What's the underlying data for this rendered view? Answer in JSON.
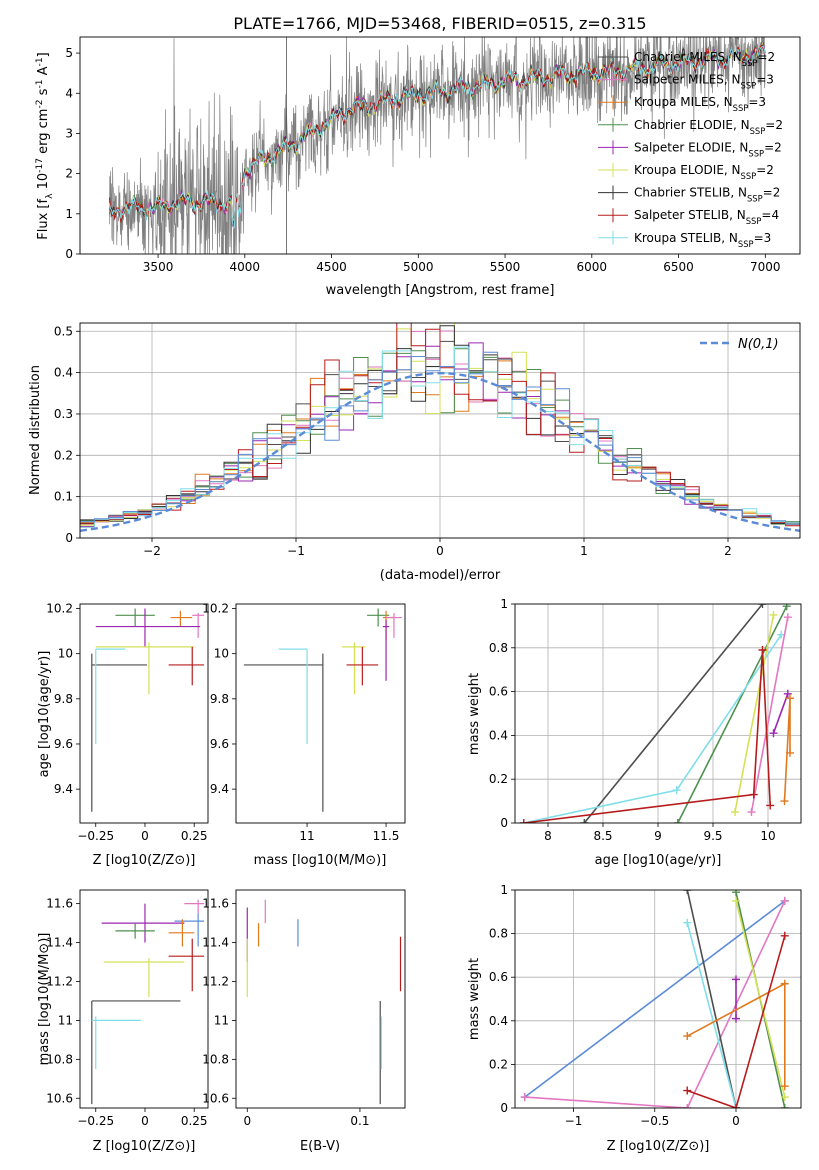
{
  "figure": {
    "title": "PLATE=1766, MJD=53468, FIBERID=0515, z=0.315"
  },
  "legend_colors": [
    "#4d4d4d",
    "#e377c2",
    "#e07a1f",
    "#4f8f4f",
    "#9b27b0",
    "#d4e157",
    "#333333",
    "#b71c1c",
    "#80deea"
  ],
  "chart_data": [
    {
      "id": "spectrum",
      "type": "line",
      "xlabel": "wavelength [Angstrom, rest frame]",
      "ylabel": "Flux [f_λ 10^-17 erg cm^-2 s^-1 A^-1]",
      "xlim": [
        3050,
        7200
      ],
      "ylim": [
        0,
        5.4
      ],
      "xticks": [
        3500,
        4000,
        4500,
        5000,
        5500,
        6000,
        6500,
        7000
      ],
      "yticks": [
        0,
        1,
        2,
        3,
        4,
        5
      ],
      "grid": false,
      "legend": "top-right",
      "continuum_knots": [
        [
          3220,
          1.0
        ],
        [
          3300,
          1.15
        ],
        [
          3500,
          1.15
        ],
        [
          3600,
          1.3
        ],
        [
          3800,
          1.3
        ],
        [
          3950,
          1.2
        ],
        [
          4000,
          2.1
        ],
        [
          4300,
          2.8
        ],
        [
          4600,
          3.6
        ],
        [
          4900,
          3.9
        ],
        [
          5200,
          4.1
        ],
        [
          5500,
          4.3
        ],
        [
          5800,
          4.45
        ],
        [
          6100,
          4.55
        ],
        [
          6400,
          4.7
        ],
        [
          6700,
          4.85
        ],
        [
          7000,
          5.0
        ]
      ],
      "series": [
        {
          "name": "Chabrier MILES, N_SSP=2",
          "color": "#4d4d4d"
        },
        {
          "name": "Salpeter MILES, N_SSP=3",
          "color": "#e377c2"
        },
        {
          "name": "Kroupa MILES, N_SSP=3",
          "color": "#e07a1f"
        },
        {
          "name": "Chabrier ELODIE, N_SSP=2",
          "color": "#4f8f4f"
        },
        {
          "name": "Salpeter ELODIE, N_SSP=2",
          "color": "#9b27b0"
        },
        {
          "name": "Kroupa ELODIE, N_SSP=2",
          "color": "#d4e157"
        },
        {
          "name": "Chabrier STELIB, N_SSP=2",
          "color": "#333333"
        },
        {
          "name": "Salpeter STELIB, N_SSP=4",
          "color": "#b71c1c"
        },
        {
          "name": "Kroupa STELIB, N_SSP=3",
          "color": "#80deea"
        }
      ]
    },
    {
      "id": "residuals",
      "type": "line",
      "xlabel": "(data-model)/error",
      "ylabel": "Normed distribution",
      "xlim": [
        -2.5,
        2.5
      ],
      "ylim": [
        0,
        0.52
      ],
      "xticks": [
        -2,
        -1,
        0,
        1,
        2
      ],
      "yticks": [
        0,
        0.1,
        0.2,
        0.3,
        0.4,
        0.5
      ],
      "grid": true,
      "legend": "top-right",
      "reference": {
        "name": "N(0,1)",
        "color": "#5b8bd6"
      },
      "hist_colors": [
        "#4d4d4d",
        "#e377c2",
        "#e07a1f",
        "#4f8f4f",
        "#9b27b0",
        "#d4e157",
        "#333333",
        "#b71c1c",
        "#80deea",
        "#5b8bd6"
      ]
    },
    {
      "id": "age_vs_Z",
      "type": "scatter",
      "xlabel": "Z [log10(Z/Z⊙)]",
      "ylabel": "age [log10(age/yr)]",
      "xlim": [
        -0.33,
        0.32
      ],
      "ylim": [
        9.25,
        10.22
      ],
      "xticks": [
        -0.25,
        0,
        0.25
      ],
      "yticks": [
        9.4,
        9.6,
        9.8,
        10.0,
        10.2
      ],
      "points": [
        {
          "x": -0.05,
          "y": 10.17,
          "xe": [
            -0.15,
            0.05
          ],
          "ye": [
            10.12,
            10.2
          ],
          "color": "#4f8f4f"
        },
        {
          "x": 0.18,
          "y": 10.16,
          "xe": [
            0.13,
            0.24
          ],
          "ye": [
            10.12,
            10.19
          ],
          "color": "#e07a1f"
        },
        {
          "x": 0.27,
          "y": 10.17,
          "xe": [
            0.24,
            0.3
          ],
          "ye": [
            10.07,
            10.18
          ],
          "color": "#e377c2"
        },
        {
          "x": 0.0,
          "y": 10.12,
          "xe": [
            -0.25,
            0.28
          ],
          "ye": [
            10.03,
            10.2
          ],
          "color": "#9b27b0"
        },
        {
          "x": 0.02,
          "y": 10.03,
          "xe": [
            -0.25,
            0.25
          ],
          "ye": [
            9.82,
            10.05
          ],
          "color": "#d4e157"
        },
        {
          "x": -0.27,
          "y": 9.95,
          "xe": [
            -0.27,
            0.01
          ],
          "ye": [
            9.3,
            10.0
          ],
          "color": "#4d4d4d"
        },
        {
          "x": -0.25,
          "y": 10.02,
          "xe": [
            -0.25,
            -0.1
          ],
          "ye": [
            9.6,
            10.02
          ],
          "color": "#80deea"
        },
        {
          "x": 0.24,
          "y": 9.95,
          "xe": [
            0.12,
            0.3
          ],
          "ye": [
            9.86,
            10.03
          ],
          "color": "#b71c1c"
        }
      ]
    },
    {
      "id": "age_vs_mass",
      "type": "scatter",
      "xlabel": "mass [log10(M/M⊙)]",
      "ylabel": "",
      "xlim": [
        10.55,
        11.62
      ],
      "ylim": [
        9.25,
        10.22
      ],
      "xticks": [
        11.0,
        11.5
      ],
      "yticks": [
        9.4,
        9.6,
        9.8,
        10.0,
        10.2
      ],
      "points": [
        {
          "x": 11.45,
          "y": 10.17,
          "xe": [
            11.38,
            11.52
          ],
          "ye": [
            10.12,
            10.2
          ],
          "color": "#4f8f4f"
        },
        {
          "x": 11.5,
          "y": 10.16,
          "xe": [
            11.48,
            11.55
          ],
          "ye": [
            10.06,
            10.19
          ],
          "color": "#e07a1f"
        },
        {
          "x": 11.55,
          "y": 10.16,
          "xe": [
            11.5,
            11.6
          ],
          "ye": [
            10.07,
            10.18
          ],
          "color": "#e377c2"
        },
        {
          "x": 11.5,
          "y": 10.12,
          "xe": [
            11.48,
            11.52
          ],
          "ye": [
            9.88,
            10.15
          ],
          "color": "#9b27b0"
        },
        {
          "x": 11.3,
          "y": 10.03,
          "xe": [
            11.22,
            11.37
          ],
          "ye": [
            9.82,
            10.05
          ],
          "color": "#d4e157"
        },
        {
          "x": 11.1,
          "y": 9.95,
          "xe": [
            10.6,
            11.1
          ],
          "ye": [
            9.3,
            10.0
          ],
          "color": "#4d4d4d"
        },
        {
          "x": 11.0,
          "y": 10.02,
          "xe": [
            10.82,
            11.0
          ],
          "ye": [
            9.6,
            10.02
          ],
          "color": "#80deea"
        },
        {
          "x": 11.35,
          "y": 9.95,
          "xe": [
            11.25,
            11.45
          ],
          "ye": [
            9.86,
            10.03
          ],
          "color": "#b71c1c"
        }
      ]
    },
    {
      "id": "weight_vs_age",
      "type": "line",
      "xlabel": "age [log10(age/yr)]",
      "ylabel": "mass weight",
      "xlim": [
        7.7,
        10.3
      ],
      "ylim": [
        0,
        1.0
      ],
      "xticks": [
        8.0,
        8.5,
        9.0,
        9.5,
        10.0
      ],
      "yticks": [
        0,
        0.2,
        0.4,
        0.6,
        0.8,
        1.0
      ],
      "grid": true,
      "series": [
        {
          "color": "#4d4d4d",
          "points": [
            [
              8.33,
              0.0
            ],
            [
              9.95,
              1.0
            ]
          ]
        },
        {
          "color": "#4f8f4f",
          "points": [
            [
              9.18,
              0.0
            ],
            [
              10.17,
              0.99
            ]
          ]
        },
        {
          "color": "#80deea",
          "points": [
            [
              7.78,
              0.0
            ],
            [
              9.17,
              0.15
            ],
            [
              10.12,
              0.86
            ]
          ]
        },
        {
          "color": "#d4e157",
          "points": [
            [
              9.7,
              0.05
            ],
            [
              10.05,
              0.95
            ]
          ]
        },
        {
          "color": "#e377c2",
          "points": [
            [
              9.85,
              0.05
            ],
            [
              10.18,
              0.94
            ]
          ]
        },
        {
          "color": "#9b27b0",
          "points": [
            [
              10.05,
              0.41
            ],
            [
              10.18,
              0.59
            ]
          ]
        },
        {
          "color": "#e07a1f",
          "points": [
            [
              10.15,
              0.1
            ],
            [
              10.2,
              0.57
            ],
            [
              10.2,
              0.32
            ]
          ]
        },
        {
          "color": "#b71c1c",
          "points": [
            [
              7.78,
              0.0
            ],
            [
              9.87,
              0.13
            ],
            [
              9.95,
              0.79
            ],
            [
              10.02,
              0.08
            ]
          ]
        }
      ]
    },
    {
      "id": "mass_vs_Z",
      "type": "scatter",
      "xlabel": "Z [log10(Z/Z⊙)]",
      "ylabel": "mass [log10(M/M⊙)]",
      "xlim": [
        -0.33,
        0.32
      ],
      "ylim": [
        10.55,
        11.67
      ],
      "xticks": [
        -0.25,
        0,
        0.25
      ],
      "yticks": [
        10.6,
        10.8,
        11.0,
        11.2,
        11.4,
        11.6
      ],
      "points": [
        {
          "x": 0.27,
          "y": 11.6,
          "xe": [
            0.2,
            0.3
          ],
          "ye": [
            11.55,
            11.62
          ],
          "color": "#e377c2"
        },
        {
          "x": 0.27,
          "y": 11.51,
          "xe": [
            0.15,
            0.3
          ],
          "ye": [
            11.38,
            11.55
          ],
          "color": "#5b8bd6"
        },
        {
          "x": 0.0,
          "y": 11.5,
          "xe": [
            -0.22,
            0.2
          ],
          "ye": [
            11.4,
            11.6
          ],
          "color": "#9b27b0"
        },
        {
          "x": 0.19,
          "y": 11.45,
          "xe": [
            0.12,
            0.25
          ],
          "ye": [
            11.38,
            11.52
          ],
          "color": "#e07a1f"
        },
        {
          "x": -0.05,
          "y": 11.46,
          "xe": [
            -0.15,
            0.05
          ],
          "ye": [
            11.42,
            11.5
          ],
          "color": "#4f8f4f"
        },
        {
          "x": 0.24,
          "y": 11.33,
          "xe": [
            0.12,
            0.3
          ],
          "ye": [
            11.15,
            11.42
          ],
          "color": "#b71c1c"
        },
        {
          "x": 0.02,
          "y": 11.3,
          "xe": [
            -0.21,
            0.2
          ],
          "ye": [
            11.12,
            11.32
          ],
          "color": "#d4e157"
        },
        {
          "x": -0.27,
          "y": 11.1,
          "xe": [
            -0.27,
            0.18
          ],
          "ye": [
            10.57,
            11.1
          ],
          "color": "#4d4d4d"
        },
        {
          "x": -0.25,
          "y": 11.0,
          "xe": [
            -0.27,
            -0.02
          ],
          "ye": [
            10.75,
            11.02
          ],
          "color": "#80deea"
        }
      ]
    },
    {
      "id": "mass_vs_EBV",
      "type": "scatter",
      "xlabel": "E(B-V)",
      "ylabel": "",
      "xlim": [
        -0.01,
        0.14
      ],
      "ylim": [
        10.55,
        11.67
      ],
      "xticks": [
        0.0,
        0.1
      ],
      "yticks": [
        10.6,
        10.8,
        11.0,
        11.2,
        11.4,
        11.6
      ],
      "points": [
        {
          "x": 0.0,
          "y": 11.45,
          "ye": [
            11.3,
            11.58
          ],
          "color": "#9b27b0"
        },
        {
          "x": 0.0,
          "y": 11.3,
          "ye": [
            11.12,
            11.42
          ],
          "color": "#d4e157"
        },
        {
          "x": 0.01,
          "y": 11.45,
          "ye": [
            11.38,
            11.5
          ],
          "color": "#e07a1f"
        },
        {
          "x": 0.016,
          "y": 11.55,
          "ye": [
            11.5,
            11.62
          ],
          "color": "#e377c2"
        },
        {
          "x": 0.045,
          "y": 11.45,
          "ye": [
            11.38,
            11.52
          ],
          "color": "#5b8bd6"
        },
        {
          "x": 0.118,
          "y": 10.9,
          "ye": [
            10.57,
            11.1
          ],
          "color": "#4d4d4d"
        },
        {
          "x": 0.119,
          "y": 10.85,
          "ye": [
            10.75,
            11.02
          ],
          "color": "#80deea"
        },
        {
          "x": 0.136,
          "y": 11.3,
          "ye": [
            11.15,
            11.43
          ],
          "color": "#b71c1c"
        }
      ]
    },
    {
      "id": "weight_vs_Z",
      "type": "line",
      "xlabel": "Z [log10(Z/Z⊙)]",
      "ylabel": "mass weight",
      "xlim": [
        -1.36,
        0.4
      ],
      "ylim": [
        0,
        1.0
      ],
      "xticks": [
        -1.0,
        -0.5,
        0.0
      ],
      "yticks": [
        0,
        0.2,
        0.4,
        0.6,
        0.8,
        1.0
      ],
      "grid": true,
      "series": [
        {
          "color": "#5b8bd6",
          "points": [
            [
              -1.3,
              0.05
            ],
            [
              0.3,
              0.95
            ]
          ]
        },
        {
          "color": "#e377c2",
          "points": [
            [
              -1.3,
              0.05
            ],
            [
              -0.3,
              0.0
            ],
            [
              0.3,
              0.95
            ]
          ]
        },
        {
          "color": "#4d4d4d",
          "points": [
            [
              -0.3,
              1.0
            ],
            [
              0.0,
              0.0
            ]
          ]
        },
        {
          "color": "#4f8f4f",
          "points": [
            [
              0.0,
              0.99
            ],
            [
              0.3,
              0.0
            ]
          ]
        },
        {
          "color": "#80deea",
          "points": [
            [
              -0.3,
              0.85
            ],
            [
              0.0,
              0.0
            ]
          ]
        },
        {
          "color": "#d4e157",
          "points": [
            [
              0.0,
              0.95
            ],
            [
              0.3,
              0.05
            ]
          ]
        },
        {
          "color": "#9b27b0",
          "points": [
            [
              0.0,
              0.41
            ],
            [
              0.0,
              0.59
            ]
          ]
        },
        {
          "color": "#e07a1f",
          "points": [
            [
              -0.3,
              0.33
            ],
            [
              0.3,
              0.57
            ],
            [
              0.3,
              0.1
            ]
          ]
        },
        {
          "color": "#b71c1c",
          "points": [
            [
              -0.3,
              0.08
            ],
            [
              0.0,
              0.0
            ],
            [
              0.3,
              0.79
            ]
          ]
        }
      ]
    }
  ]
}
